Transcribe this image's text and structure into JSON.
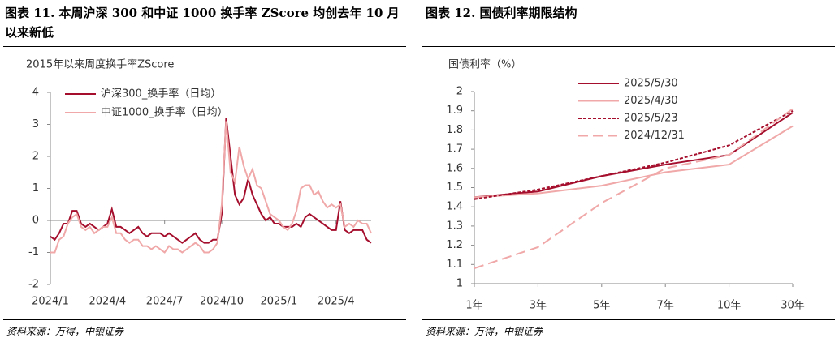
{
  "chart_data": [
    {
      "type": "line",
      "title": "图表 11. 本周沪深 300 和中证 1000 换手率 ZScore 均创去年 10 月以来新低",
      "subtitle": "2015年以来周度换手率ZScore",
      "note": "资料来源：万得，中银证券",
      "categories": [
        "2024/1",
        null,
        null,
        null,
        null,
        null,
        null,
        null,
        null,
        null,
        null,
        null,
        null,
        "2024/4",
        null,
        null,
        null,
        null,
        null,
        null,
        null,
        null,
        null,
        null,
        null,
        null,
        "2024/7",
        null,
        null,
        null,
        null,
        null,
        null,
        null,
        null,
        null,
        null,
        null,
        null,
        "2024/10",
        null,
        null,
        null,
        null,
        null,
        null,
        null,
        null,
        null,
        null,
        null,
        null,
        "2025/1",
        null,
        null,
        null,
        null,
        null,
        null,
        null,
        null,
        null,
        null,
        null,
        null,
        "2025/4",
        null,
        null,
        null,
        null,
        null,
        null,
        null,
        null
      ],
      "series": [
        {
          "name": "沪深300_换手率（日均）",
          "color": "#a50f2d",
          "line_style": "solid",
          "values": [
            -0.5,
            -0.6,
            -0.4,
            -0.1,
            -0.1,
            0.3,
            0.3,
            -0.1,
            -0.2,
            -0.1,
            -0.2,
            -0.3,
            -0.2,
            -0.1,
            0.35,
            -0.2,
            -0.2,
            -0.3,
            -0.4,
            -0.3,
            -0.2,
            -0.4,
            -0.5,
            -0.4,
            -0.4,
            -0.4,
            -0.5,
            -0.4,
            -0.5,
            -0.6,
            -0.7,
            -0.6,
            -0.5,
            -0.4,
            -0.6,
            -0.7,
            -0.7,
            -0.6,
            -0.6,
            0.2,
            3.2,
            2.0,
            0.8,
            0.5,
            0.7,
            1.3,
            0.8,
            0.5,
            0.2,
            0.0,
            0.1,
            -0.1,
            -0.1,
            -0.2,
            -0.2,
            -0.2,
            -0.1,
            -0.2,
            0.1,
            0.2,
            0.1,
            0.0,
            -0.1,
            -0.2,
            -0.3,
            -0.3,
            0.6,
            -0.3,
            -0.4,
            -0.3,
            -0.3,
            -0.3,
            -0.6,
            -0.7
          ]
        },
        {
          "name": "中证1000_换手率（日均）",
          "color": "#f0a8a8",
          "line_style": "solid",
          "values": [
            -1.0,
            -1.0,
            -0.6,
            -0.5,
            -0.1,
            0.1,
            0.2,
            -0.2,
            -0.3,
            -0.2,
            -0.4,
            -0.3,
            -0.2,
            -0.2,
            0.1,
            -0.4,
            -0.4,
            -0.6,
            -0.7,
            -0.6,
            -0.6,
            -0.8,
            -0.8,
            -0.9,
            -0.8,
            -0.9,
            -1.0,
            -0.8,
            -0.9,
            -0.9,
            -1.0,
            -0.9,
            -0.8,
            -0.7,
            -0.8,
            -1.0,
            -1.0,
            -0.9,
            -0.7,
            0.5,
            3.1,
            1.5,
            1.2,
            2.3,
            1.7,
            1.3,
            1.6,
            1.1,
            1.0,
            0.6,
            0.2,
            0.1,
            0.0,
            -0.2,
            -0.3,
            -0.1,
            0.3,
            1.0,
            1.1,
            1.1,
            0.8,
            0.9,
            0.6,
            0.4,
            0.5,
            0.4,
            0.5,
            -0.2,
            -0.1,
            -0.2,
            0.0,
            -0.1,
            -0.1,
            -0.4
          ]
        }
      ],
      "ylim": [
        -2,
        4
      ],
      "yticks": [
        -2,
        -1,
        0,
        1,
        2,
        3,
        4
      ],
      "legend": "upper left"
    },
    {
      "type": "line",
      "title": "图表 12. 国债利率期限结构",
      "y_label": "国债利率（%）",
      "note": "资料来源：万得，中银证券",
      "categories": [
        "1年",
        "3年",
        "5年",
        "7年",
        "10年",
        "30年"
      ],
      "series": [
        {
          "name": "2025/5/30",
          "color": "#a50f2d",
          "line_style": "solid",
          "values": [
            1.45,
            1.48,
            1.56,
            1.62,
            1.67,
            1.89
          ]
        },
        {
          "name": "2025/4/30",
          "color": "#f0a8a8",
          "line_style": "solid",
          "values": [
            1.45,
            1.47,
            1.51,
            1.58,
            1.62,
            1.82
          ]
        },
        {
          "name": "2025/5/23",
          "color": "#a50f2d",
          "line_style": "dotted",
          "values": [
            1.44,
            1.49,
            1.56,
            1.63,
            1.72,
            1.9
          ]
        },
        {
          "name": "2024/12/31",
          "color": "#f0a8a8",
          "line_style": "dashed",
          "values": [
            1.08,
            1.19,
            1.42,
            1.6,
            1.67,
            1.91
          ]
        }
      ],
      "ylim": [
        1,
        2
      ],
      "yticks": [
        1,
        1.1,
        1.2,
        1.3,
        1.4,
        1.5,
        1.6,
        1.7,
        1.8,
        1.9,
        2
      ],
      "legend": "upper left"
    }
  ]
}
